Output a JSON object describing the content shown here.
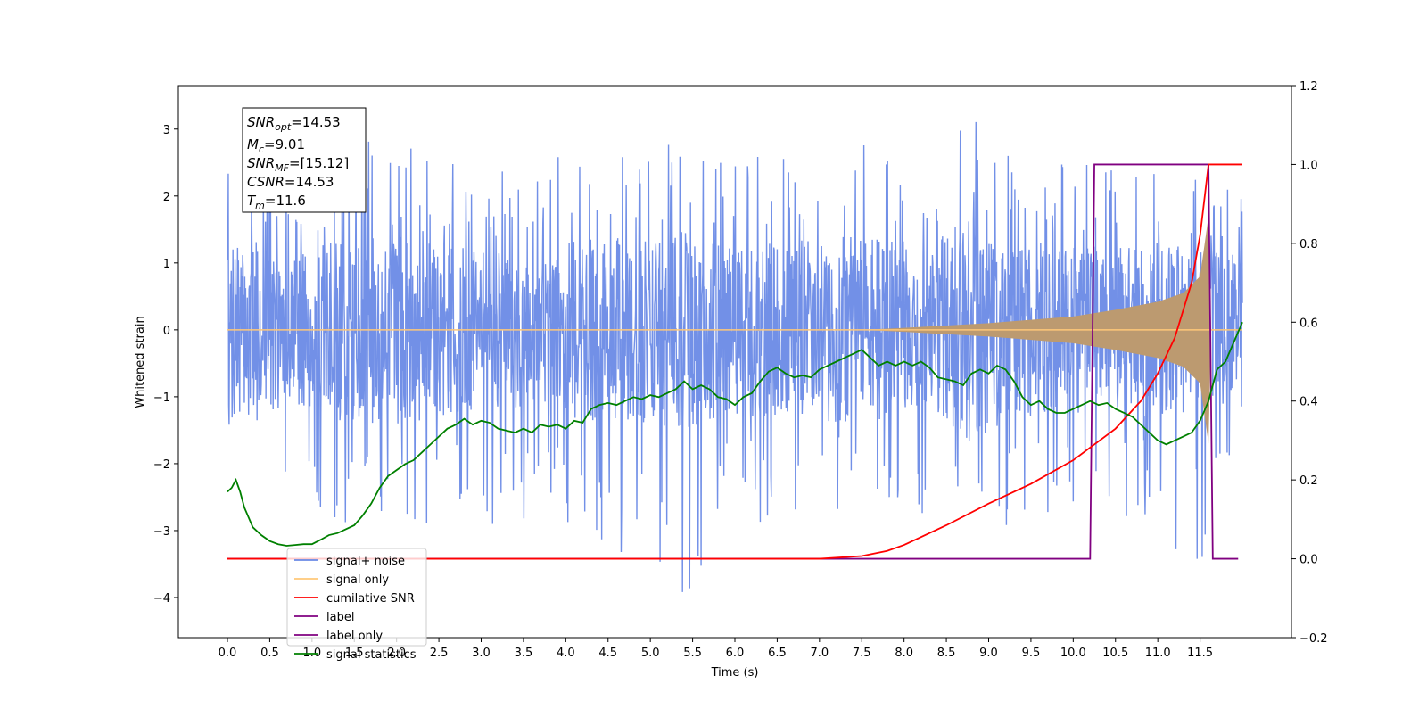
{
  "chart_data": {
    "type": "line",
    "xlabel": "Time (s)",
    "ylabel": "Whitened strain",
    "xlim": [
      -0.58,
      12.58
    ],
    "ylim": [
      -4.6,
      3.65
    ],
    "y2lim": [
      -0.2,
      1.2
    ],
    "x_ticks": [
      0.0,
      0.5,
      1.0,
      1.5,
      2.0,
      2.5,
      3.0,
      3.5,
      4.0,
      4.5,
      5.0,
      5.5,
      6.0,
      6.5,
      7.0,
      7.5,
      8.0,
      8.5,
      9.0,
      9.5,
      10.0,
      10.5,
      11.0,
      11.5
    ],
    "x_tick_labels": [
      "0.0",
      "0.5",
      "1.0",
      "1.5",
      "2.0",
      "2.5",
      "3.0",
      "3.5",
      "4.0",
      "4.5",
      "5.0",
      "5.5",
      "6.0",
      "6.5",
      "7.0",
      "7.5",
      "8.0",
      "8.5",
      "9.0",
      "9.5",
      "10.0",
      "10.5",
      "11.0",
      "11.5"
    ],
    "y_ticks": [
      -4,
      -3,
      -2,
      -1,
      0,
      1,
      2,
      3
    ],
    "y_tick_labels": [
      "−4",
      "−3",
      "−2",
      "−1",
      "0",
      "1",
      "2",
      "3"
    ],
    "y2_ticks": [
      -0.2,
      0.0,
      0.2,
      0.4,
      0.6,
      0.8,
      1.0,
      1.2
    ],
    "y2_tick_labels": [
      "−0.2",
      "0.0",
      "0.2",
      "0.4",
      "0.6",
      "0.8",
      "1.0",
      "1.2"
    ],
    "grid": false,
    "legend_position": "lower-left",
    "legend": [
      {
        "label": "signal+ noise",
        "color": "#6a8ae6"
      },
      {
        "label": "signal only",
        "color": "#ffc878"
      },
      {
        "label": "cumilative SNR",
        "color": "#ff0000"
      },
      {
        "label": "label",
        "color": "#800080"
      },
      {
        "label": "label only",
        "color": "#800080"
      },
      {
        "label": "signal statistics",
        "color": "#008000"
      }
    ],
    "annotation": {
      "snr_opt": {
        "sym": "SNR",
        "sub": "opt",
        "value": "=14.53"
      },
      "mc": {
        "sym": "M",
        "sub": "c",
        "value": "=9.01"
      },
      "snr_mf": {
        "sym": "SNR",
        "sub": "MF",
        "value": "=[15.12]"
      },
      "csnr": {
        "sym": "CSNR",
        "sub": "",
        "value": "=14.53"
      },
      "tm": {
        "sym": "T",
        "sub": "m",
        "value": "=11.6"
      }
    },
    "noise": {
      "name": "signal+ noise",
      "axis": "left",
      "color": "#6a8ae6",
      "t_range": [
        0.0,
        12.0
      ],
      "envelope_upper": [
        [
          0.0,
          2.5
        ],
        [
          0.5,
          2.3
        ],
        [
          1.0,
          2.4
        ],
        [
          1.6,
          2.9
        ],
        [
          2.2,
          2.7
        ],
        [
          3.0,
          2.4
        ],
        [
          4.0,
          2.6
        ],
        [
          5.4,
          2.9
        ],
        [
          6.0,
          2.6
        ],
        [
          7.0,
          2.7
        ],
        [
          7.5,
          2.8
        ],
        [
          8.3,
          2.5
        ],
        [
          8.8,
          3.4
        ],
        [
          9.5,
          2.6
        ],
        [
          10.0,
          2.5
        ],
        [
          10.5,
          2.5
        ],
        [
          11.0,
          2.6
        ],
        [
          11.5,
          2.4
        ],
        [
          12.0,
          2.3
        ]
      ],
      "envelope_lower": [
        [
          0.0,
          -1.4
        ],
        [
          0.5,
          -2.1
        ],
        [
          1.0,
          -2.6
        ],
        [
          1.5,
          -3.2
        ],
        [
          2.0,
          -2.9
        ],
        [
          3.0,
          -2.9
        ],
        [
          4.2,
          -3.1
        ],
        [
          5.35,
          -4.1
        ],
        [
          6.0,
          -2.9
        ],
        [
          7.0,
          -2.8
        ],
        [
          8.0,
          -2.8
        ],
        [
          9.0,
          -2.9
        ],
        [
          9.5,
          -3.0
        ],
        [
          10.0,
          -2.7
        ],
        [
          10.5,
          -2.8
        ],
        [
          11.0,
          -2.9
        ],
        [
          11.5,
          -3.8
        ],
        [
          12.0,
          -2.4
        ]
      ]
    },
    "chirp": {
      "name": "signal only",
      "axis": "left",
      "color": "#ffc878",
      "fill_color": "#bc9a70",
      "envelope": [
        [
          0.0,
          0.0
        ],
        [
          7.5,
          0.0
        ],
        [
          8.0,
          0.03
        ],
        [
          9.0,
          0.1
        ],
        [
          10.0,
          0.2
        ],
        [
          10.5,
          0.3
        ],
        [
          11.0,
          0.42
        ],
        [
          11.3,
          0.55
        ],
        [
          11.5,
          0.8
        ],
        [
          11.6,
          1.7
        ],
        [
          11.63,
          0.0
        ],
        [
          12.0,
          0.0
        ]
      ]
    },
    "cumulative_snr": {
      "name": "cumilative SNR",
      "axis": "right",
      "color": "#ff0000",
      "points": [
        [
          0.0,
          0.0
        ],
        [
          7.0,
          0.0
        ],
        [
          7.5,
          0.007
        ],
        [
          7.8,
          0.02
        ],
        [
          8.0,
          0.035
        ],
        [
          8.5,
          0.085
        ],
        [
          9.0,
          0.14
        ],
        [
          9.5,
          0.19
        ],
        [
          10.0,
          0.25
        ],
        [
          10.5,
          0.33
        ],
        [
          10.8,
          0.4
        ],
        [
          11.0,
          0.47
        ],
        [
          11.2,
          0.56
        ],
        [
          11.4,
          0.7
        ],
        [
          11.5,
          0.82
        ],
        [
          11.6,
          1.0
        ],
        [
          12.0,
          1.0
        ]
      ]
    },
    "label_series": {
      "name": "label",
      "axis": "right",
      "color": "#800080",
      "points": [
        [
          0.0,
          0.0
        ],
        [
          10.2,
          0.0
        ],
        [
          10.25,
          1.0
        ],
        [
          11.6,
          1.0
        ],
        [
          11.65,
          0.0
        ],
        [
          11.95,
          0.0
        ]
      ]
    },
    "signal_statistics": {
      "name": "signal statistics",
      "axis": "right",
      "color": "#008000",
      "points": [
        [
          0.0,
          0.17
        ],
        [
          0.05,
          0.18
        ],
        [
          0.1,
          0.2
        ],
        [
          0.15,
          0.17
        ],
        [
          0.2,
          0.13
        ],
        [
          0.3,
          0.08
        ],
        [
          0.4,
          0.06
        ],
        [
          0.5,
          0.045
        ],
        [
          0.6,
          0.037
        ],
        [
          0.7,
          0.033
        ],
        [
          0.8,
          0.035
        ],
        [
          0.9,
          0.037
        ],
        [
          1.0,
          0.037
        ],
        [
          1.1,
          0.048
        ],
        [
          1.2,
          0.06
        ],
        [
          1.3,
          0.065
        ],
        [
          1.4,
          0.075
        ],
        [
          1.5,
          0.085
        ],
        [
          1.6,
          0.11
        ],
        [
          1.7,
          0.14
        ],
        [
          1.8,
          0.18
        ],
        [
          1.9,
          0.21
        ],
        [
          2.0,
          0.225
        ],
        [
          2.1,
          0.24
        ],
        [
          2.2,
          0.25
        ],
        [
          2.3,
          0.27
        ],
        [
          2.4,
          0.29
        ],
        [
          2.5,
          0.31
        ],
        [
          2.6,
          0.33
        ],
        [
          2.7,
          0.34
        ],
        [
          2.8,
          0.355
        ],
        [
          2.9,
          0.34
        ],
        [
          3.0,
          0.35
        ],
        [
          3.1,
          0.345
        ],
        [
          3.2,
          0.33
        ],
        [
          3.3,
          0.325
        ],
        [
          3.4,
          0.32
        ],
        [
          3.5,
          0.33
        ],
        [
          3.6,
          0.32
        ],
        [
          3.7,
          0.34
        ],
        [
          3.8,
          0.335
        ],
        [
          3.9,
          0.34
        ],
        [
          4.0,
          0.33
        ],
        [
          4.1,
          0.35
        ],
        [
          4.2,
          0.345
        ],
        [
          4.3,
          0.38
        ],
        [
          4.4,
          0.39
        ],
        [
          4.5,
          0.395
        ],
        [
          4.6,
          0.39
        ],
        [
          4.7,
          0.4
        ],
        [
          4.8,
          0.41
        ],
        [
          4.9,
          0.405
        ],
        [
          5.0,
          0.415
        ],
        [
          5.1,
          0.41
        ],
        [
          5.2,
          0.42
        ],
        [
          5.3,
          0.43
        ],
        [
          5.4,
          0.45
        ],
        [
          5.5,
          0.43
        ],
        [
          5.6,
          0.44
        ],
        [
          5.7,
          0.43
        ],
        [
          5.8,
          0.41
        ],
        [
          5.9,
          0.405
        ],
        [
          6.0,
          0.39
        ],
        [
          6.1,
          0.41
        ],
        [
          6.2,
          0.42
        ],
        [
          6.3,
          0.45
        ],
        [
          6.4,
          0.475
        ],
        [
          6.5,
          0.485
        ],
        [
          6.6,
          0.47
        ],
        [
          6.7,
          0.46
        ],
        [
          6.8,
          0.465
        ],
        [
          6.9,
          0.46
        ],
        [
          7.0,
          0.48
        ],
        [
          7.1,
          0.49
        ],
        [
          7.2,
          0.5
        ],
        [
          7.3,
          0.51
        ],
        [
          7.4,
          0.52
        ],
        [
          7.5,
          0.53
        ],
        [
          7.6,
          0.51
        ],
        [
          7.7,
          0.49
        ],
        [
          7.8,
          0.5
        ],
        [
          7.9,
          0.49
        ],
        [
          8.0,
          0.5
        ],
        [
          8.1,
          0.49
        ],
        [
          8.2,
          0.5
        ],
        [
          8.3,
          0.485
        ],
        [
          8.4,
          0.46
        ],
        [
          8.5,
          0.455
        ],
        [
          8.6,
          0.45
        ],
        [
          8.7,
          0.44
        ],
        [
          8.8,
          0.47
        ],
        [
          8.9,
          0.48
        ],
        [
          9.0,
          0.47
        ],
        [
          9.1,
          0.49
        ],
        [
          9.2,
          0.48
        ],
        [
          9.3,
          0.45
        ],
        [
          9.4,
          0.41
        ],
        [
          9.5,
          0.39
        ],
        [
          9.6,
          0.4
        ],
        [
          9.7,
          0.38
        ],
        [
          9.8,
          0.37
        ],
        [
          9.9,
          0.37
        ],
        [
          10.0,
          0.38
        ],
        [
          10.1,
          0.39
        ],
        [
          10.2,
          0.4
        ],
        [
          10.3,
          0.39
        ],
        [
          10.4,
          0.395
        ],
        [
          10.5,
          0.38
        ],
        [
          10.6,
          0.37
        ],
        [
          10.7,
          0.36
        ],
        [
          10.8,
          0.34
        ],
        [
          10.9,
          0.32
        ],
        [
          11.0,
          0.3
        ],
        [
          11.1,
          0.29
        ],
        [
          11.2,
          0.3
        ],
        [
          11.3,
          0.31
        ],
        [
          11.4,
          0.32
        ],
        [
          11.5,
          0.35
        ],
        [
          11.6,
          0.4
        ],
        [
          11.7,
          0.48
        ],
        [
          11.8,
          0.5
        ],
        [
          11.9,
          0.55
        ],
        [
          12.0,
          0.6
        ]
      ]
    }
  }
}
